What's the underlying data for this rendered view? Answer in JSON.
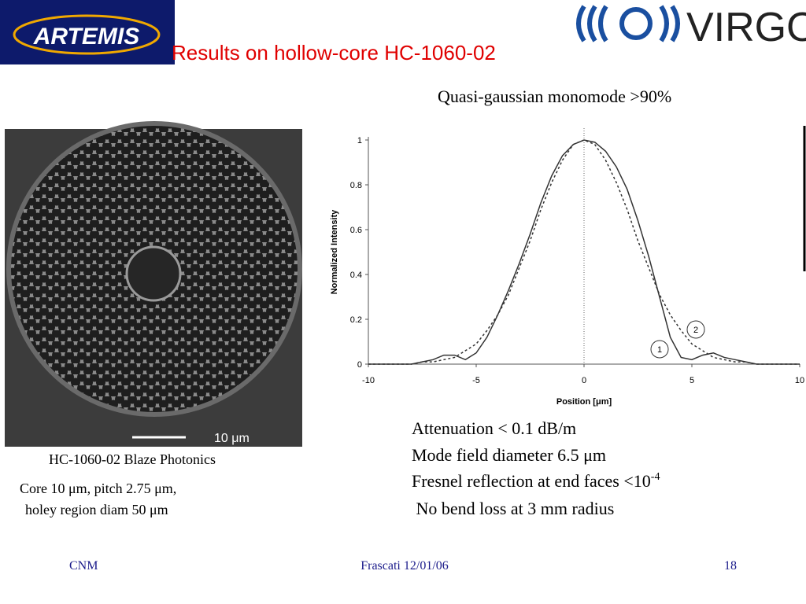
{
  "header": {
    "title": "Results on hollow-core HC-1060-02",
    "logo_left": "ARTEMIS",
    "logo_right": "VIRGO"
  },
  "subtitle": "Quasi-gaussian monomode >90%",
  "image": {
    "scale_label": "10 μm",
    "caption": "HC-1060-02 Blaze Photonics",
    "details": [
      "Core 10 μm, pitch 2.75 μm,",
      "holey region diam 50 μm"
    ]
  },
  "chart_data": {
    "type": "line",
    "xlabel": "Position [μm]",
    "ylabel": "Normalized Intensity",
    "x": [
      -10,
      -9,
      -8,
      -7.5,
      -7,
      -6.5,
      -6,
      -5.5,
      -5,
      -4.5,
      -4,
      -3.5,
      -3,
      -2.5,
      -2,
      -1.5,
      -1,
      -0.5,
      0,
      0.5,
      1,
      1.5,
      2,
      2.5,
      3,
      3.5,
      4,
      4.5,
      5,
      5.5,
      6,
      6.5,
      7,
      7.5,
      8,
      9,
      10
    ],
    "series": [
      {
        "name": "1",
        "color": "#333333",
        "style": "solid",
        "values": [
          0,
          0,
          0,
          0.01,
          0.02,
          0.04,
          0.04,
          0.02,
          0.05,
          0.12,
          0.22,
          0.33,
          0.45,
          0.58,
          0.72,
          0.84,
          0.93,
          0.98,
          1.0,
          0.99,
          0.95,
          0.88,
          0.78,
          0.64,
          0.48,
          0.3,
          0.12,
          0.03,
          0.02,
          0.04,
          0.05,
          0.03,
          0.02,
          0.01,
          0,
          0,
          0
        ]
      },
      {
        "name": "2",
        "color": "#333333",
        "style": "dashed",
        "values": [
          0,
          0,
          0,
          0.01,
          0.01,
          0.02,
          0.03,
          0.06,
          0.09,
          0.15,
          0.22,
          0.31,
          0.43,
          0.55,
          0.69,
          0.81,
          0.91,
          0.98,
          1,
          0.98,
          0.91,
          0.81,
          0.69,
          0.55,
          0.43,
          0.31,
          0.22,
          0.15,
          0.09,
          0.06,
          0.03,
          0.02,
          0.01,
          0.01,
          0,
          0,
          0
        ]
      }
    ],
    "reference_x": 0,
    "xlim": [
      -10,
      10
    ],
    "xticks": [
      -10,
      -5,
      0,
      5,
      10
    ],
    "ylim": [
      0,
      1
    ],
    "yticks": [
      0,
      0.2,
      0.4,
      0.6,
      0.8,
      1
    ]
  },
  "specs": [
    {
      "text": "Attenuation < 0.1 dB/m"
    },
    {
      "text": "Mode field diameter  6.5 μm"
    },
    {
      "text": "Fresnel reflection at end faces <10",
      "superscript": "-4"
    },
    {
      "text": " No bend loss at 3 mm radius"
    }
  ],
  "footer": {
    "left": "CNM",
    "center": "Frascati 12/01/06",
    "page": "18"
  }
}
